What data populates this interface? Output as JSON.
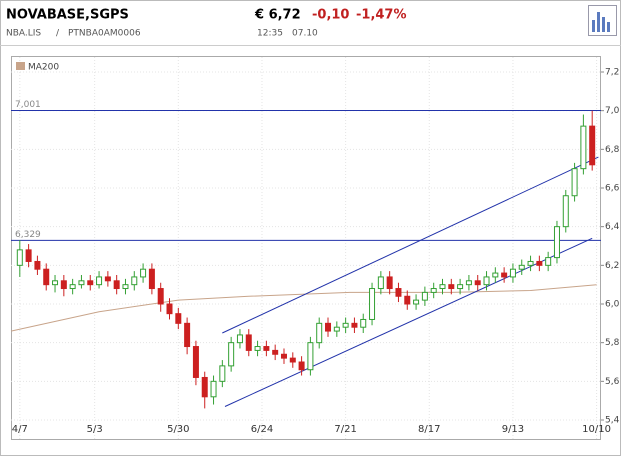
{
  "header": {
    "symbol": "NOVABASE,SGPS",
    "exchange": "NBA.LIS",
    "separator": "/",
    "isin": "PTNBA0AM0006",
    "price": "€ 6,72",
    "change": "-0,10",
    "change_pct": "-1,47%",
    "time": "12:35",
    "date": "07.10"
  },
  "chart_data": {
    "type": "candlestick",
    "legend": {
      "name": "MA200",
      "color": "#c8a48a"
    },
    "xlim": [
      -2,
      132
    ],
    "xticks": [
      {
        "value": 0,
        "label": "4/7"
      },
      {
        "value": 17,
        "label": "5/3"
      },
      {
        "value": 36,
        "label": "5/30"
      },
      {
        "value": 55,
        "label": "6/24"
      },
      {
        "value": 74,
        "label": "7/21"
      },
      {
        "value": 93,
        "label": "8/17"
      },
      {
        "value": 112,
        "label": "9/13"
      },
      {
        "value": 131,
        "label": "10/10"
      }
    ],
    "ylim": [
      5.4,
      7.2
    ],
    "yticks": [
      {
        "value": 5.4,
        "label": "5,4"
      },
      {
        "value": 5.6,
        "label": "5,6"
      },
      {
        "value": 5.8,
        "label": "5,8"
      },
      {
        "value": 6.0,
        "label": "6,0"
      },
      {
        "value": 6.2,
        "label": "6,2"
      },
      {
        "value": 6.4,
        "label": "6,4"
      },
      {
        "value": 6.6,
        "label": "6,6"
      },
      {
        "value": 6.8,
        "label": "6,8"
      },
      {
        "value": 7.0,
        "label": "7,0"
      },
      {
        "value": 7.2,
        "label": "7,2"
      }
    ],
    "grid": true,
    "up_color": "#33a033",
    "down_color": "#cc2020",
    "x": [
      0,
      2,
      4,
      6,
      8,
      10,
      12,
      14,
      16,
      18,
      20,
      22,
      24,
      26,
      28,
      30,
      32,
      34,
      36,
      38,
      40,
      42,
      44,
      46,
      48,
      50,
      52,
      54,
      56,
      58,
      60,
      62,
      64,
      66,
      68,
      70,
      72,
      74,
      76,
      78,
      80,
      82,
      84,
      86,
      88,
      90,
      92,
      94,
      96,
      98,
      100,
      102,
      104,
      106,
      108,
      110,
      112,
      114,
      116,
      118,
      120,
      122,
      124,
      126,
      128,
      130
    ],
    "open": [
      6.2,
      6.28,
      6.22,
      6.18,
      6.1,
      6.12,
      6.08,
      6.1,
      6.12,
      6.1,
      6.14,
      6.12,
      6.08,
      6.1,
      6.14,
      6.18,
      6.08,
      6.0,
      5.95,
      5.9,
      5.78,
      5.62,
      5.52,
      5.6,
      5.68,
      5.8,
      5.84,
      5.76,
      5.78,
      5.76,
      5.74,
      5.72,
      5.7,
      5.66,
      5.8,
      5.9,
      5.86,
      5.88,
      5.9,
      5.88,
      5.92,
      6.08,
      6.14,
      6.08,
      6.04,
      6.0,
      6.02,
      6.06,
      6.08,
      6.1,
      6.08,
      6.1,
      6.12,
      6.1,
      6.14,
      6.16,
      6.14,
      6.18,
      6.2,
      6.22,
      6.2,
      6.24,
      6.4,
      6.56,
      6.7,
      6.92
    ],
    "high": [
      6.33,
      6.31,
      6.25,
      6.21,
      6.15,
      6.15,
      6.13,
      6.15,
      6.15,
      6.17,
      6.17,
      6.15,
      6.13,
      6.17,
      6.21,
      6.21,
      6.11,
      6.03,
      5.98,
      5.93,
      5.81,
      5.65,
      5.63,
      5.71,
      5.83,
      5.87,
      5.87,
      5.81,
      5.81,
      5.79,
      5.77,
      5.75,
      5.73,
      5.83,
      5.93,
      5.93,
      5.91,
      5.93,
      5.93,
      5.95,
      6.11,
      6.17,
      6.17,
      6.11,
      6.07,
      6.05,
      6.09,
      6.11,
      6.13,
      6.13,
      6.13,
      6.15,
      6.15,
      6.17,
      6.19,
      6.19,
      6.21,
      6.23,
      6.25,
      6.25,
      6.27,
      6.43,
      6.59,
      6.73,
      6.98,
      7.0
    ],
    "low": [
      6.14,
      6.19,
      6.15,
      6.07,
      6.06,
      6.04,
      6.05,
      6.08,
      6.07,
      6.08,
      6.09,
      6.05,
      6.05,
      6.07,
      6.11,
      6.05,
      5.96,
      5.92,
      5.87,
      5.74,
      5.58,
      5.46,
      5.48,
      5.57,
      5.65,
      5.77,
      5.73,
      5.73,
      5.73,
      5.71,
      5.69,
      5.67,
      5.63,
      5.63,
      5.77,
      5.83,
      5.83,
      5.85,
      5.85,
      5.85,
      5.89,
      6.05,
      6.05,
      6.01,
      5.97,
      5.97,
      5.99,
      6.03,
      6.05,
      6.05,
      6.05,
      6.07,
      6.07,
      6.07,
      6.11,
      6.11,
      6.11,
      6.15,
      6.17,
      6.17,
      6.17,
      6.21,
      6.37,
      6.53,
      6.67,
      6.69
    ],
    "close": [
      6.28,
      6.22,
      6.18,
      6.1,
      6.12,
      6.08,
      6.1,
      6.12,
      6.1,
      6.14,
      6.12,
      6.08,
      6.1,
      6.14,
      6.18,
      6.08,
      6.0,
      5.95,
      5.9,
      5.78,
      5.62,
      5.52,
      5.6,
      5.68,
      5.8,
      5.84,
      5.76,
      5.78,
      5.76,
      5.74,
      5.72,
      5.7,
      5.66,
      5.8,
      5.9,
      5.86,
      5.88,
      5.9,
      5.88,
      5.92,
      6.08,
      6.14,
      6.08,
      6.04,
      6.0,
      6.02,
      6.06,
      6.08,
      6.1,
      6.08,
      6.1,
      6.12,
      6.1,
      6.14,
      6.16,
      6.14,
      6.18,
      6.2,
      6.22,
      6.2,
      6.24,
      6.4,
      6.56,
      6.7,
      6.92,
      6.72
    ],
    "ma200": {
      "x": [
        -2,
        18,
        36,
        52,
        75,
        98,
        116,
        131
      ],
      "values": [
        5.86,
        5.96,
        6.02,
        6.04,
        6.06,
        6.06,
        6.07,
        6.1
      ]
    },
    "levels": [
      {
        "value": 7.001,
        "label": "7,001"
      },
      {
        "value": 6.329,
        "label": "6,329"
      }
    ],
    "level_color": "#2233aa",
    "trendlines": [
      {
        "x": [
          46,
          131.4
        ],
        "values": [
          5.85,
          6.76
        ]
      },
      {
        "x": [
          46.6,
          130
        ],
        "values": [
          5.47,
          6.34
        ]
      }
    ]
  }
}
